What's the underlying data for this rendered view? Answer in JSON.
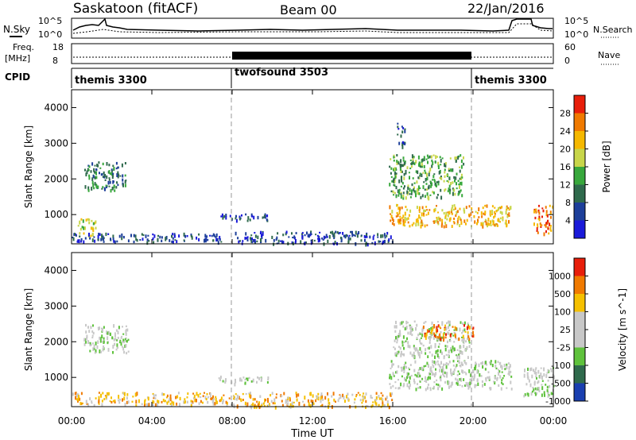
{
  "header": {
    "station": "Saskatoon (fitACF)",
    "beam": "Beam 00",
    "date": "22/Jan/2016"
  },
  "noise_panel": {
    "left_label": "N.Sky",
    "left_ticks": [
      "10^5",
      "10^0"
    ],
    "right_label": "N.Search",
    "right_ticks": [
      "10^5",
      "10^0"
    ]
  },
  "freq_panel": {
    "left_label_1": "Freq.",
    "left_label_2": "[MHz]",
    "left_ticks": [
      "18",
      "8"
    ],
    "right_label": "Nave",
    "right_ticks": [
      "60",
      "0"
    ]
  },
  "cpid_panel": {
    "label": "CPID",
    "modes": [
      "themis 3300",
      "twofsound 3503",
      "themis 3300"
    ],
    "mode_start_hours": [
      0,
      8,
      20
    ]
  },
  "colors": {
    "power_scale": [
      "#1a1ad9",
      "#1d3f9a",
      "#2f6a4c",
      "#38a83c",
      "#c8d64a",
      "#f5b800",
      "#f07a00",
      "#e81e0a"
    ],
    "velocity_scale": [
      "#1a3fb0",
      "#2f6a4c",
      "#5fc23c",
      "#c8c8c8",
      "#c8c8c8",
      "#f5c000",
      "#f07a00",
      "#e81e0a"
    ]
  },
  "chart_data": [
    {
      "type": "heatmap",
      "panel": "power",
      "ylabel": "Slant Range [km]",
      "xlabel": "Time UT",
      "ylim": [
        180,
        4500
      ],
      "yticks": [
        "1000",
        "2000",
        "3000",
        "4000"
      ],
      "xticks": [
        "00:00",
        "04:00",
        "08:00",
        "12:00",
        "16:00",
        "20:00",
        "00:00"
      ],
      "colorbar_label": "Power [dB]",
      "colorbar_ticks": [
        "4",
        "8",
        "12",
        "16",
        "20",
        "24",
        "28"
      ],
      "echo_regions": [
        {
          "t": [
            0.6,
            2.7
          ],
          "r": [
            1700,
            2500
          ],
          "level": 2
        },
        {
          "t": [
            0.3,
            1.2
          ],
          "r": [
            400,
            900
          ],
          "level": 4
        },
        {
          "t": [
            0.0,
            7.5
          ],
          "r": [
            250,
            500
          ],
          "level": 1
        },
        {
          "t": [
            7.2,
            9.8
          ],
          "r": [
            850,
            1050
          ],
          "level": 1
        },
        {
          "t": [
            8.0,
            16.0
          ],
          "r": [
            200,
            550
          ],
          "level": 1
        },
        {
          "t": [
            15.8,
            21.9
          ],
          "r": [
            700,
            1300
          ],
          "level": 5
        },
        {
          "t": [
            15.8,
            19.5
          ],
          "r": [
            1500,
            2700
          ],
          "level": 3
        },
        {
          "t": [
            16.2,
            16.6
          ],
          "r": [
            2900,
            3600
          ],
          "level": 1
        },
        {
          "t": [
            23.0,
            24.0
          ],
          "r": [
            500,
            1300
          ],
          "level": 6
        }
      ]
    },
    {
      "type": "heatmap",
      "panel": "velocity",
      "ylabel": "Slant Range [km]",
      "xlabel": "Time UT",
      "ylim": [
        180,
        4500
      ],
      "yticks": [
        "1000",
        "2000",
        "3000",
        "4000"
      ],
      "xticks": [
        "00:00",
        "04:00",
        "08:00",
        "12:00",
        "16:00",
        "20:00",
        "00:00"
      ],
      "colorbar_label": "Velocity [m s^-1]",
      "colorbar_ticks": [
        "1000",
        "500",
        "100",
        "25",
        "-25",
        "-100",
        "-500",
        "-1000"
      ],
      "echo_regions": [
        {
          "t": [
            0.6,
            2.8
          ],
          "r": [
            1700,
            2500
          ],
          "level": 3
        },
        {
          "t": [
            0.0,
            8.0
          ],
          "r": [
            250,
            600
          ],
          "level": 5
        },
        {
          "t": [
            7.2,
            9.8
          ],
          "r": [
            850,
            1050
          ],
          "level": 3
        },
        {
          "t": [
            8.0,
            16.0
          ],
          "r": [
            200,
            600
          ],
          "level": 5
        },
        {
          "t": [
            15.8,
            21.9
          ],
          "r": [
            700,
            1500
          ],
          "level": 3
        },
        {
          "t": [
            16.0,
            19.8
          ],
          "r": [
            1600,
            2600
          ],
          "level": 3
        },
        {
          "t": [
            17.5,
            20.0
          ],
          "r": [
            2100,
            2500
          ],
          "level": 6
        },
        {
          "t": [
            22.5,
            24.0
          ],
          "r": [
            500,
            1300
          ],
          "level": 3
        }
      ]
    }
  ]
}
